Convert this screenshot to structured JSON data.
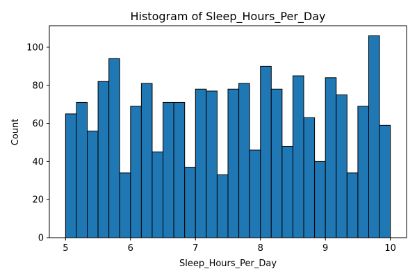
{
  "chart_data": {
    "type": "bar",
    "title": "Histogram of Sleep_Hours_Per_Day",
    "xlabel": "Sleep_Hours_Per_Day",
    "ylabel": "Count",
    "bin_edges": [
      5.0,
      5.1667,
      5.3333,
      5.5,
      5.6667,
      5.8333,
      6.0,
      6.1667,
      6.3333,
      6.5,
      6.6667,
      6.8333,
      7.0,
      7.1667,
      7.3333,
      7.5,
      7.6667,
      7.8333,
      8.0,
      8.1667,
      8.3333,
      8.5,
      8.6667,
      8.8333,
      9.0,
      9.1667,
      9.3333,
      9.5,
      9.6667,
      9.8333,
      10.0
    ],
    "values": [
      65,
      71,
      56,
      82,
      94,
      34,
      69,
      81,
      45,
      71,
      71,
      37,
      78,
      77,
      33,
      78,
      81,
      46,
      90,
      78,
      48,
      85,
      63,
      40,
      84,
      75,
      34,
      69,
      106,
      59
    ],
    "xlim": [
      4.75,
      10.25
    ],
    "ylim": [
      0,
      111.3
    ],
    "x_ticks": [
      5,
      6,
      7,
      8,
      9,
      10
    ],
    "x_tick_labels": [
      "5",
      "6",
      "7",
      "8",
      "9",
      "10"
    ],
    "y_ticks": [
      0,
      20,
      40,
      60,
      80,
      100
    ],
    "y_tick_labels": [
      "0",
      "20",
      "40",
      "60",
      "80",
      "100"
    ],
    "grid": false,
    "bar_color": "#1f77b4",
    "edge_color": "#000000"
  }
}
